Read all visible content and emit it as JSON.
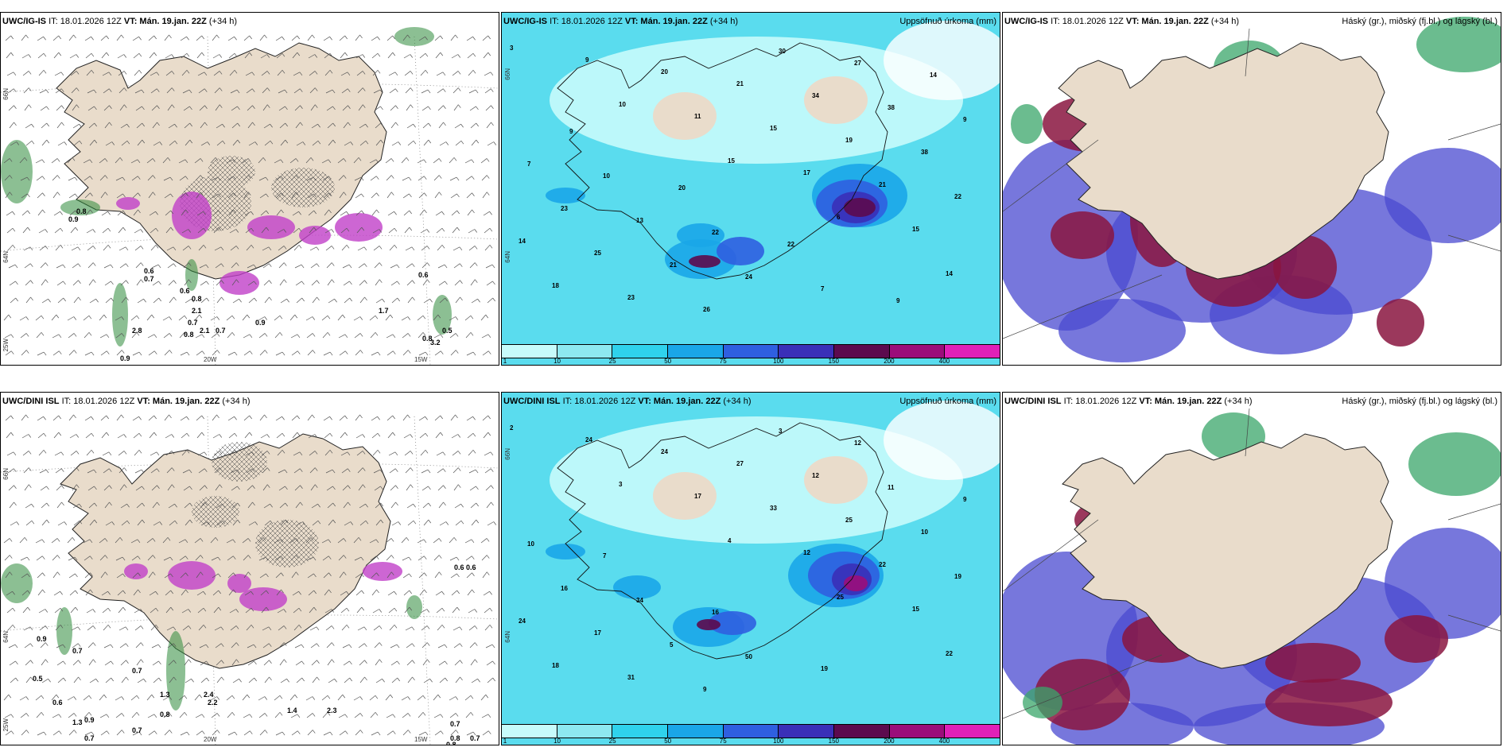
{
  "panels": [
    {
      "model": "UWC/IG-IS",
      "it": "IT: 18.01.2026 12Z",
      "vt_prefix": "VT:",
      "vt": "Mán. 19.jan. 22Z",
      "lead": "(+34 h)",
      "right_title": "",
      "type": "wind-precip",
      "axis_labels": {
        "lat1": "66N",
        "lat2": "64N",
        "lon1": "20W",
        "lon2": "15W",
        "lon3": "25W"
      },
      "values": [
        "0.8",
        "0.9",
        "0.6",
        "0.7",
        "0.6",
        "0.8",
        "2.1",
        "0.7",
        "0.8",
        "2.1",
        "1.7",
        "0.6",
        "0.5",
        "0.8",
        "0.7",
        "0.9",
        "3.2",
        "2.8",
        "0.9"
      ]
    },
    {
      "model": "UWC/IG-IS",
      "it": "IT: 18.01.2026 12Z",
      "vt_prefix": "VT:",
      "vt": "Mán. 19.jan. 22Z",
      "lead": "(+34 h)",
      "right_title": "Uppsöfnuð úrkoma (mm)",
      "type": "accum",
      "axis_labels": {
        "lat1": "66N",
        "lat2": "64N"
      },
      "values": [
        "3",
        "10",
        "15",
        "6",
        "14",
        "9",
        "11",
        "17",
        "15",
        "18",
        "20",
        "15",
        "21",
        "14",
        "23",
        "21",
        "19",
        "22",
        "25",
        "26",
        "34",
        "38",
        "23",
        "21",
        "30",
        "38",
        "7",
        "13",
        "24",
        "27",
        "9",
        "10",
        "22",
        "7",
        "14",
        "9",
        "20",
        "22",
        "9"
      ],
      "legend": [
        "1",
        "10",
        "25",
        "50",
        "75",
        "100",
        "150",
        "200",
        "400"
      ]
    },
    {
      "model": "UWC/IG-IS",
      "it": "IT: 18.01.2026 12Z",
      "vt_prefix": "VT:",
      "vt": "Mán. 19.jan. 22Z",
      "lead": "(+34 h)",
      "right_title": "Háský (gr.), miðský (fj.bl.) og lágský (bl.)",
      "type": "cloud"
    },
    {
      "model": "UWC/DINI ISL",
      "it": "IT: 18.01.2026 12Z",
      "vt_prefix": "VT:",
      "vt": "Mán. 19.jan. 22Z",
      "lead": "(+34 h)",
      "right_title": "",
      "type": "wind-precip",
      "axis_labels": {
        "lat1": "66N",
        "lat2": "64N",
        "lon1": "20W",
        "lon2": "15W",
        "lon3": "25W"
      },
      "values": [
        "0.9",
        "0.7",
        "0.5",
        "0.6",
        "1.3",
        "0.7",
        "0.9",
        "0.7",
        "1.3",
        "0.8",
        "0.7",
        "2.4",
        "2.2",
        "1.4",
        "2.3",
        "0.6",
        "0.7",
        "0.8",
        "0.8",
        "0.7",
        "0.6"
      ]
    },
    {
      "model": "UWC/DINI ISL",
      "it": "IT: 18.01.2026 12Z",
      "vt_prefix": "VT:",
      "vt": "Mán. 19.jan. 22Z",
      "lead": "(+34 h)",
      "right_title": "Uppsöfnuð úrkoma (mm)",
      "type": "accum",
      "axis_labels": {
        "lat1": "66N",
        "lat2": "64N"
      },
      "values": [
        "2",
        "3",
        "4",
        "25",
        "22",
        "24",
        "17",
        "12",
        "15",
        "18",
        "24",
        "33",
        "22",
        "24",
        "31",
        "27",
        "25",
        "19",
        "17",
        "9",
        "12",
        "10",
        "16",
        "5",
        "3",
        "11",
        "10",
        "34",
        "50",
        "12",
        "9",
        "7",
        "16",
        "19"
      ],
      "legend": [
        "1",
        "10",
        "25",
        "50",
        "75",
        "100",
        "150",
        "200",
        "400"
      ]
    },
    {
      "model": "UWC/DINI ISL",
      "it": "IT: 18.01.2026 12Z",
      "vt_prefix": "VT:",
      "vt": "Mán. 19.jan. 22Z",
      "lead": "(+34 h)",
      "right_title": "Háský (gr.), miðský (fj.bl.) og lágský (bl.)",
      "type": "cloud"
    }
  ],
  "colors": {
    "land": "#e9dccb",
    "accum_levels": [
      "#c7fbfb",
      "#8ee8f0",
      "#2fd2ec",
      "#1aa6e8",
      "#2f5fe0",
      "#3a2fb8",
      "#5c0a4e",
      "#9b0d7a",
      "#e020b8",
      "#f2a6f0"
    ],
    "wind_precip_green": "#2e8a3a",
    "wind_precip_magenta": "#c040c8",
    "cloud_high": "#3aa66a",
    "cloud_mid": "#8a1540",
    "cloud_low": "#4a4ad0"
  }
}
